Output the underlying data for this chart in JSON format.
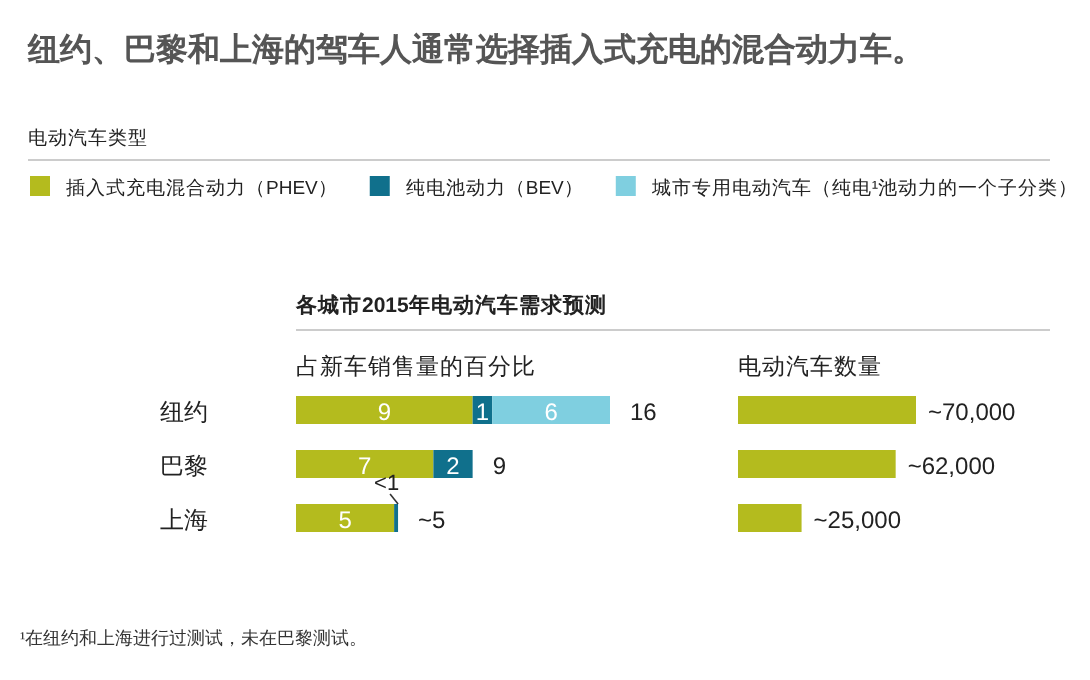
{
  "chart_data": [
    {
      "type": "bar",
      "orientation": "horizontal",
      "stacked": true,
      "title": "纽约、巴黎和上海的驾车人通常选择插入式充电的混合动力车。",
      "subtitle": "占新车销售量的百分比",
      "legend_title": "电动汽车类型",
      "legend": "top",
      "categories": [
        "纽约",
        "巴黎",
        "上海"
      ],
      "series": [
        {
          "name": "插入式充电混合动力（PHEV）",
          "color": "#b4bb1e",
          "values": [
            9,
            7,
            5
          ],
          "value_labels": [
            "9",
            "7",
            "5"
          ]
        },
        {
          "name": "纯电池动力（BEV）",
          "color": "#10708c",
          "values": [
            1,
            2,
            0.2
          ],
          "value_labels": [
            "1",
            "2",
            "<1"
          ]
        },
        {
          "name": "城市专用电动汽车（纯电¹池动力的一个子分类）",
          "color": "#7fcfe0",
          "values": [
            6,
            null,
            null
          ],
          "value_labels": [
            "6",
            null,
            null
          ]
        }
      ],
      "totals": [
        "16",
        "9",
        "~5"
      ],
      "annotations": [
        "各城市2015年电动汽车需求预测",
        "¹在纽约和上海进行过测试，未在巴黎测试。"
      ]
    },
    {
      "type": "bar",
      "orientation": "horizontal",
      "subtitle": "电动汽车数量",
      "categories": [
        null,
        null,
        null
      ],
      "series": [
        {
          "color": "#b4bb1e",
          "values": [
            70000,
            62000,
            25000
          ],
          "value_labels": [
            "~70,000",
            "~62,000",
            "~25,000"
          ]
        }
      ]
    }
  ]
}
